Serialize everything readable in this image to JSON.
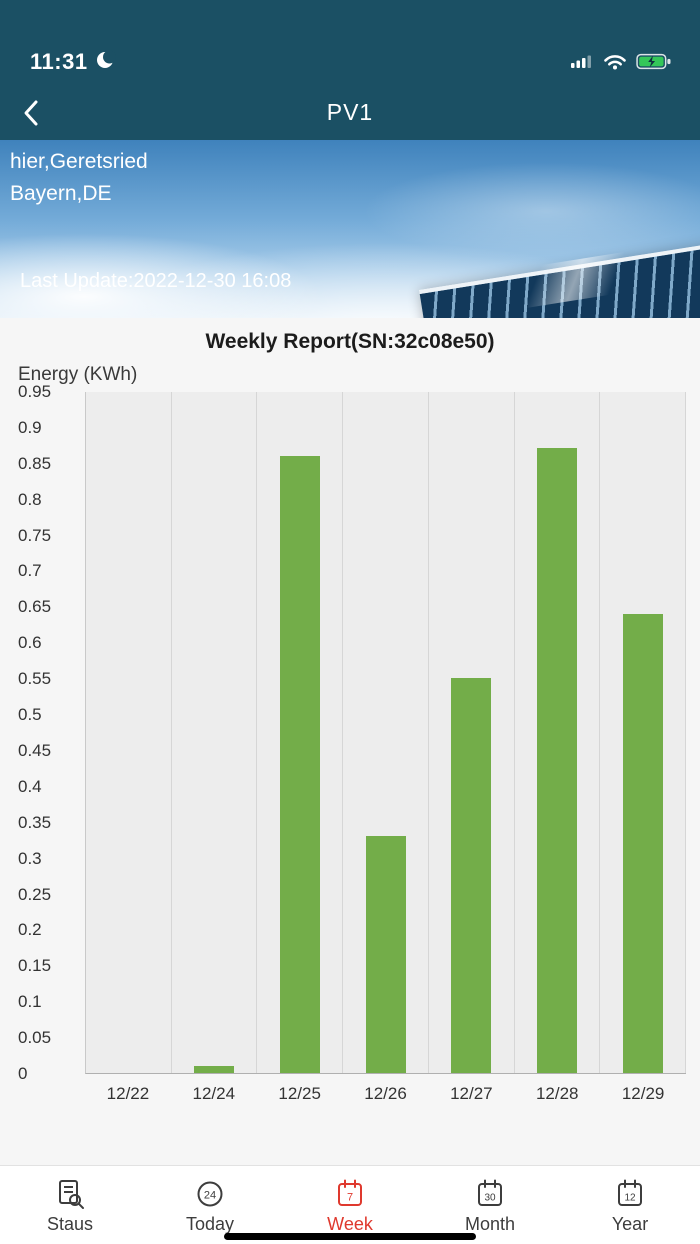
{
  "status_bar": {
    "time": "11:31"
  },
  "nav": {
    "title": "PV1"
  },
  "location": {
    "line1": "hier,Geretsried",
    "line2": "Bayern,DE",
    "last_update": "Last Update:2022-12-30 16:08"
  },
  "chart_data": {
    "type": "bar",
    "title": "Weekly Report(SN:32c08e50)",
    "ylabel": "Energy (KWh)",
    "categories": [
      "12/22",
      "12/24",
      "12/25",
      "12/26",
      "12/27",
      "12/28",
      "12/29"
    ],
    "values": [
      0,
      0.01,
      0.86,
      0.33,
      0.55,
      0.87,
      0.64
    ],
    "ylim": [
      0,
      0.95
    ],
    "ytick_step": 0.05,
    "bar_color": "#73ad49",
    "grid": "vertical-only",
    "legend": "none"
  },
  "colors": {
    "header": "#1b5064",
    "tab_active": "#df392e",
    "bar_green": "#73ad49",
    "battery_green": "#34c759"
  },
  "tabbar": {
    "items": [
      {
        "label": "Staus",
        "icon": "report-search-icon",
        "active": false
      },
      {
        "label": "Today",
        "icon": "clock-24-circle-icon",
        "active": false
      },
      {
        "label": "Week",
        "icon": "calendar-7-icon",
        "active": true,
        "badge": "7"
      },
      {
        "label": "Month",
        "icon": "calendar-30-icon",
        "active": false,
        "badge": "30"
      },
      {
        "label": "Year",
        "icon": "calendar-12-icon",
        "active": false,
        "badge": "12"
      }
    ]
  }
}
